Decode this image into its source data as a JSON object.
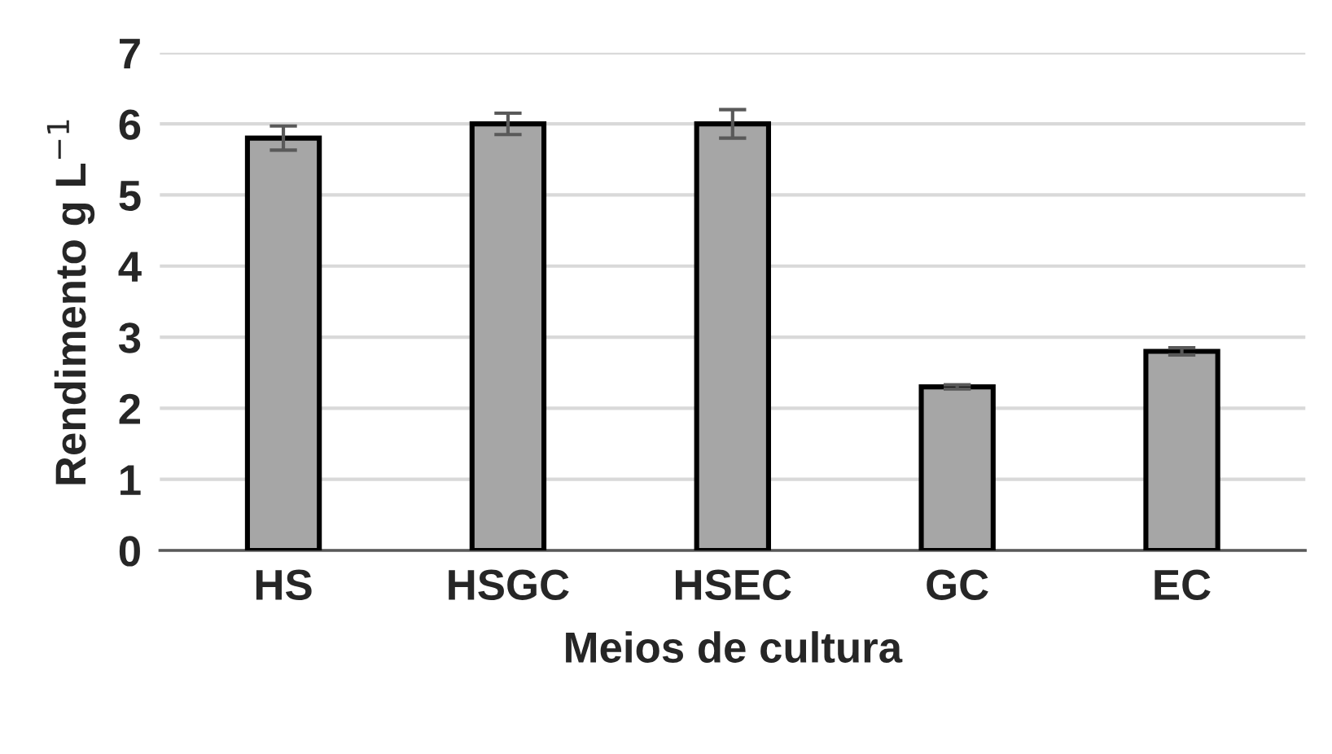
{
  "chart_data": {
    "type": "bar",
    "xlabel": "Meios de cultura",
    "ylabel": "Rendimento g L$^{−1}$",
    "categories": [
      "HS",
      "HSGC",
      "HSEC",
      "GC",
      "EC"
    ],
    "values": [
      5.8,
      6.0,
      6.0,
      2.3,
      2.8
    ],
    "errors": [
      0.17,
      0.15,
      0.2,
      0.03,
      0.05
    ],
    "color": "#a6a6a6",
    "ylim": [
      0,
      7
    ],
    "yticks": [
      0,
      1,
      2,
      3,
      4,
      5,
      6,
      7
    ],
    "grid": "y"
  }
}
